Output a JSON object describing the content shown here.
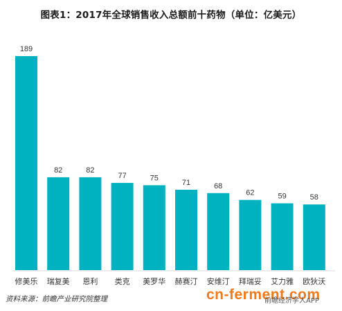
{
  "chart_data": {
    "type": "bar",
    "title": "图表1：2017年全球销售收入总额前十药物（单位：亿美元）",
    "categories": [
      "修美乐",
      "瑞复美",
      "恩利",
      "类克",
      "美罗华",
      "赫赛汀",
      "安维汀",
      "拜瑞妥",
      "艾力雅",
      "欧狄沃"
    ],
    "values": [
      189,
      82,
      82,
      77,
      75,
      71,
      68,
      62,
      59,
      58
    ],
    "data_labels": [
      "189",
      "82",
      "82",
      "77",
      "75",
      "71",
      "68",
      "62",
      "59",
      "58"
    ],
    "ylim": [
      0,
      189
    ],
    "grid": false,
    "bar_color": "#00b2bf"
  },
  "footer": {
    "source": "资料来源：前瞻产业研究院整理"
  },
  "watermarks": {
    "site": "cn-ferment.com",
    "logo_text": "前瞻经济学人APP"
  }
}
